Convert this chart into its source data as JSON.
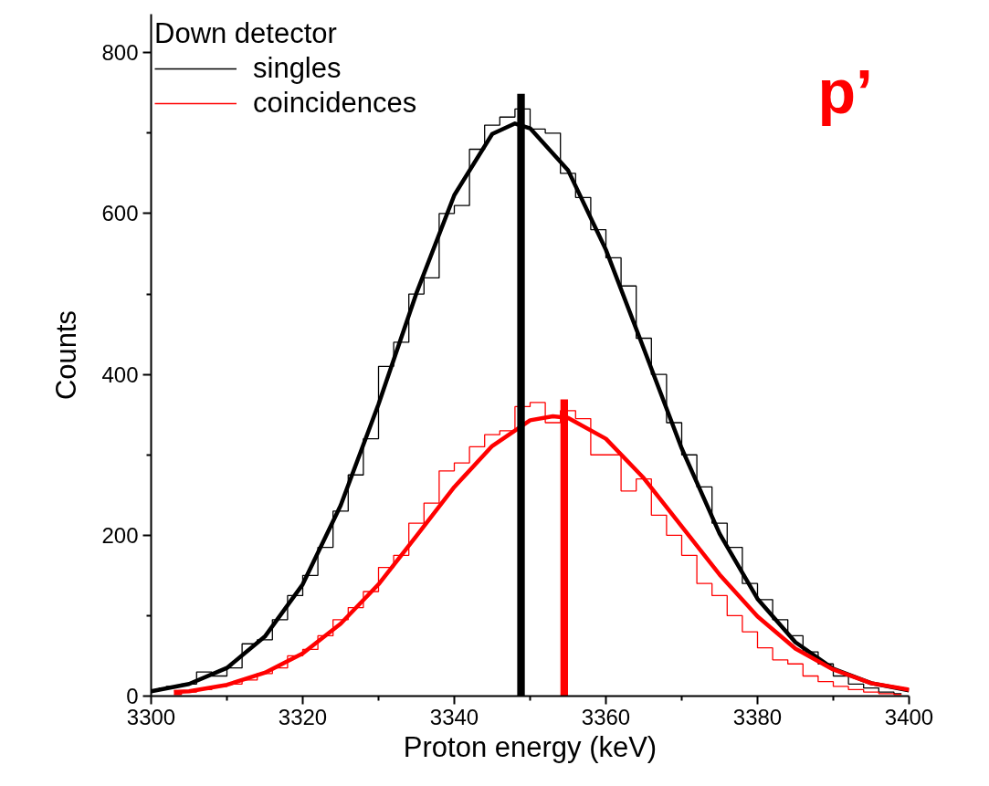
{
  "chart_data": {
    "type": "step",
    "xlabel": "Proton energy (keV)",
    "ylabel": "Counts",
    "legend_title": "Down detector",
    "xlim": [
      3300,
      3400
    ],
    "xticks": [
      3300,
      3320,
      3340,
      3360,
      3380,
      3400
    ],
    "ylim": [
      0,
      848
    ],
    "yticks": [
      0,
      200,
      400,
      600,
      800
    ],
    "grid": false,
    "legend": "top left",
    "annotations": [
      "p’"
    ],
    "series": [
      {
        "name": "singles",
        "color": "#000000",
        "x": [
          3301,
          3303,
          3305,
          3307,
          3309,
          3311,
          3313,
          3315,
          3317,
          3319,
          3321,
          3323,
          3325,
          3327,
          3329,
          3331,
          3333,
          3335,
          3337,
          3339,
          3341,
          3343,
          3345,
          3347,
          3349,
          3351,
          3353,
          3355,
          3357,
          3359,
          3361,
          3363,
          3365,
          3367,
          3369,
          3371,
          3373,
          3375,
          3377,
          3379,
          3381,
          3383,
          3385,
          3387,
          3389,
          3391,
          3393,
          3395,
          3397,
          3399
        ],
        "values": [
          10,
          12,
          15,
          30,
          25,
          35,
          65,
          70,
          95,
          125,
          150,
          185,
          230,
          275,
          320,
          410,
          440,
          500,
          520,
          600,
          610,
          680,
          710,
          720,
          730,
          705,
          700,
          650,
          620,
          580,
          545,
          510,
          445,
          400,
          340,
          300,
          260,
          215,
          185,
          140,
          120,
          95,
          75,
          55,
          40,
          25,
          15,
          10,
          5,
          3
        ]
      },
      {
        "name": "coincidences",
        "color": "#ff0000",
        "x": [
          3303,
          3305,
          3307,
          3309,
          3311,
          3313,
          3315,
          3317,
          3319,
          3321,
          3323,
          3325,
          3327,
          3329,
          3331,
          3333,
          3335,
          3337,
          3339,
          3341,
          3343,
          3345,
          3347,
          3349,
          3351,
          3353,
          3355,
          3357,
          3359,
          3361,
          3363,
          3365,
          3367,
          3369,
          3371,
          3373,
          3375,
          3377,
          3379,
          3381,
          3383,
          3385,
          3387,
          3389,
          3391,
          3393,
          3395,
          3397,
          3399
        ],
        "values": [
          2,
          5,
          8,
          12,
          15,
          20,
          28,
          35,
          50,
          58,
          75,
          95,
          110,
          130,
          160,
          175,
          215,
          240,
          280,
          290,
          310,
          325,
          330,
          360,
          365,
          340,
          355,
          345,
          300,
          300,
          255,
          270,
          225,
          200,
          175,
          140,
          125,
          100,
          80,
          60,
          45,
          40,
          25,
          18,
          12,
          8,
          5,
          3,
          2
        ]
      },
      {
        "type": "line",
        "color": "#000000",
        "x": [
          3300,
          3305,
          3310,
          3315,
          3320,
          3325,
          3330,
          3335,
          3340,
          3345,
          3348,
          3350,
          3355,
          3360,
          3365,
          3370,
          3375,
          3380,
          3385,
          3390,
          3395,
          3400
        ],
        "values": [
          6,
          15,
          35,
          74,
          139,
          237,
          363,
          501,
          623,
          699,
          712,
          706,
          654,
          555,
          432,
          308,
          202,
          121,
          67,
          34,
          16,
          7
        ]
      },
      {
        "type": "line",
        "color": "#ff0000",
        "x": [
          3303,
          3305,
          3310,
          3315,
          3320,
          3325,
          3330,
          3335,
          3340,
          3345,
          3350,
          3353,
          3355,
          3360,
          3365,
          3370,
          3375,
          3380,
          3385,
          3390,
          3395,
          3400
        ],
        "values": [
          5,
          6,
          14,
          29,
          53,
          90,
          139,
          199,
          260,
          311,
          343,
          348,
          346,
          320,
          271,
          211,
          151,
          99,
          59,
          33,
          16,
          8
        ]
      },
      {
        "type": "bar",
        "color": "#000000",
        "x": [
          3348.8
        ],
        "values": [
          749
        ]
      },
      {
        "type": "bar",
        "color": "#ff0000",
        "x": [
          3354.5
        ],
        "values": [
          369
        ]
      }
    ]
  }
}
